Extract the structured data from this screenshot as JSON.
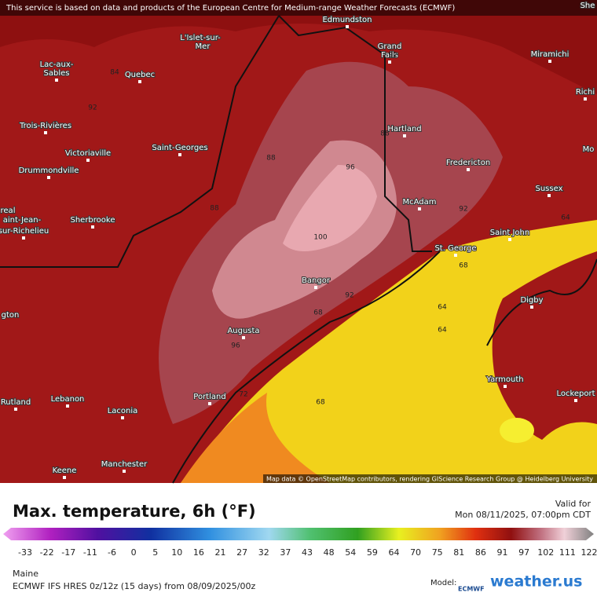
{
  "header": {
    "notice": "This service is based on data and products of the European Centre for Medium-range Weather Forecasts (ECMWF)"
  },
  "map": {
    "places": [
      "Edmundston",
      "L'Islet-sur-",
      "Mer",
      "Lac-aux-",
      "Sables",
      "Quebec",
      "Grand",
      "Falls",
      "Miramichi",
      "Richi",
      "She",
      "Trois-Rivières",
      "Victoriaville",
      "Saint-Georges",
      "Hartland",
      "Fredericton",
      "Mo",
      "Drummondville",
      "Sussex",
      "McAdam",
      "real",
      "aint-Jean-",
      "sur-Richelieu",
      "Sherbrooke",
      "Saint John",
      "St. George",
      "Bangor",
      "Digby",
      "gton",
      "Augusta",
      "Yarmouth",
      "Lockeport",
      "Rutland",
      "Lebanon",
      "Laconia",
      "Portland",
      "Manchester",
      "Keene"
    ],
    "contour_labels": [
      84,
      92,
      88,
      92,
      96,
      88,
      92,
      100,
      92,
      68,
      64,
      64,
      96,
      68,
      68,
      88,
      64,
      72
    ],
    "attribution": "Map data © OpenStreetMap contributors, rendering GIScience Research Group @ Heidelberg University"
  },
  "footer": {
    "title": "Max. temperature, 6h (°F)",
    "valid_label": "Valid for",
    "valid_time": "Mon 08/11/2025, 07:00pm CDT",
    "legend_ticks": [
      -33,
      -22,
      -17,
      -11,
      -6,
      0,
      5,
      10,
      16,
      21,
      27,
      32,
      37,
      43,
      48,
      54,
      59,
      64,
      70,
      75,
      81,
      86,
      91,
      97,
      102,
      111,
      122
    ],
    "region": "Maine",
    "model_run": "ECMWF IFS HRES 0z/12z (15 days) from 08/09/2025/00z",
    "model_label": "Model:",
    "model_logo": "ECMWF",
    "brand": "weather.us"
  }
}
